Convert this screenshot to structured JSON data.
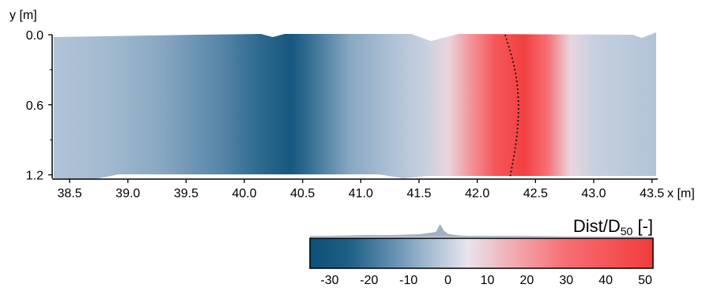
{
  "chart_data": {
    "type": "heatmap",
    "title": "",
    "xlabel": "x [m]",
    "ylabel": "y [m]",
    "xlim": [
      38.35,
      43.55
    ],
    "ylim": [
      1.23,
      0.0
    ],
    "y_inverted": true,
    "x_ticks": [
      "38.5",
      "39.0",
      "39.5",
      "40.0",
      "40.5",
      "41.0",
      "41.5",
      "42.0",
      "42.5",
      "43.0",
      "43.5"
    ],
    "y_ticks": [
      "0.0",
      "0.6",
      "1.2"
    ],
    "x_tick_values": [
      38.5,
      39.0,
      39.5,
      40.0,
      40.5,
      41.0,
      41.5,
      42.0,
      42.5,
      43.0,
      43.5
    ],
    "y_tick_values": [
      0.0,
      0.6,
      1.2
    ],
    "field_profile_along_x": {
      "x": [
        38.35,
        38.8,
        39.3,
        39.8,
        40.1,
        40.4,
        40.6,
        40.9,
        41.3,
        41.55,
        41.75,
        41.95,
        42.15,
        42.4,
        42.6,
        42.8,
        43.0,
        43.55
      ],
      "value": [
        -3,
        -5,
        -9,
        -16,
        -22,
        -30,
        -20,
        -9,
        -3,
        0,
        8,
        22,
        40,
        50,
        30,
        8,
        0,
        -3
      ]
    },
    "crest_line": {
      "style": "dotted",
      "color": "#111111",
      "points": [
        {
          "x": 42.24,
          "y": 0.0
        },
        {
          "x": 42.33,
          "y": 0.3
        },
        {
          "x": 42.36,
          "y": 0.6
        },
        {
          "x": 42.34,
          "y": 0.9
        },
        {
          "x": 42.28,
          "y": 1.23
        }
      ]
    },
    "colorbar": {
      "title_main": "Dist/D",
      "title_sub": "50",
      "title_suffix": " [-]",
      "range": [
        -35,
        52
      ],
      "ticks": [
        "-30",
        "-20",
        "-10",
        "0",
        "10",
        "20",
        "30",
        "40",
        "50"
      ],
      "tick_values": [
        -30,
        -20,
        -10,
        0,
        10,
        20,
        30,
        40,
        50
      ],
      "stops": [
        {
          "value": -35,
          "color": "#0d4f78"
        },
        {
          "value": -25,
          "color": "#1e5f86"
        },
        {
          "value": -15,
          "color": "#5d8aac"
        },
        {
          "value": -5,
          "color": "#a3bbd0"
        },
        {
          "value": 5,
          "color": "#e8e4ee"
        },
        {
          "value": 15,
          "color": "#f0b2b8"
        },
        {
          "value": 30,
          "color": "#f76e73"
        },
        {
          "value": 52,
          "color": "#f23b3b"
        }
      ]
    },
    "histogram": {
      "note_values": [
        -35,
        -30,
        -25,
        -22,
        -18,
        -14,
        -10,
        -7,
        -5,
        -4,
        -3,
        -2,
        -1,
        0,
        1,
        2,
        3,
        5,
        8,
        12,
        20,
        30,
        40,
        52
      ],
      "counts": [
        2,
        2,
        3,
        4,
        4,
        4,
        5,
        6,
        9,
        10,
        12,
        30,
        14,
        7,
        5,
        4,
        3,
        2,
        2,
        2,
        2,
        1,
        1,
        1
      ],
      "color": "#9fb3c4"
    }
  }
}
